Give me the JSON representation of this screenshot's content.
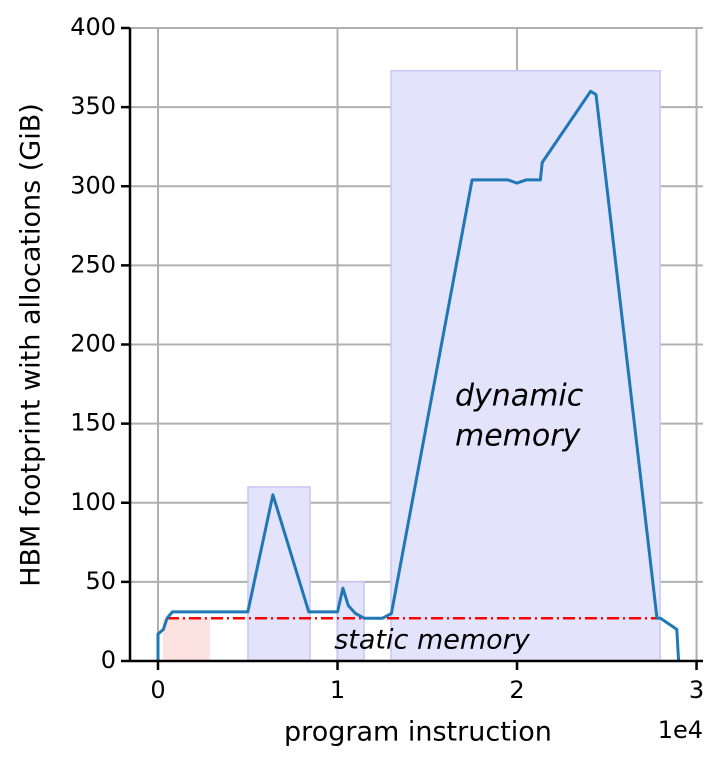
{
  "chart_data": {
    "type": "line",
    "xlabel": "program instruction",
    "ylabel": "HBM footprint with allocations (GiB)",
    "x_offset_label": "1e4",
    "xlim": [
      -1560,
      30360
    ],
    "ylim": [
      0,
      400
    ],
    "xticks": [
      {
        "value": 0,
        "label": "0"
      },
      {
        "value": 10000,
        "label": "1"
      },
      {
        "value": 20000,
        "label": "2"
      },
      {
        "value": 30000,
        "label": "3"
      }
    ],
    "yticks": [
      0,
      50,
      100,
      150,
      200,
      250,
      300,
      350,
      400
    ],
    "grid": true,
    "series": [
      {
        "color": "#1f77b4",
        "x": [
          0,
          0,
          300,
          500,
          800,
          5000,
          6400,
          8400,
          10000,
          10300,
          10600,
          11000,
          11500,
          12500,
          13000,
          17500,
          19500,
          20000,
          20500,
          21300,
          21400,
          24100,
          24400,
          25000,
          27800,
          28000,
          28900,
          29000
        ],
        "values": [
          0,
          17,
          20,
          27,
          31,
          31,
          105,
          31,
          31,
          46,
          35,
          30,
          27,
          27,
          30,
          304,
          304,
          302,
          304,
          304,
          315,
          360,
          358,
          300,
          27,
          27,
          20,
          0
        ]
      }
    ],
    "dynamic_regions": {
      "color": "#e3e3fc",
      "edge": "#c8c8f4",
      "regions": [
        {
          "x": [
            5010,
            8470
          ],
          "y": [
            0,
            110
          ]
        },
        {
          "x": [
            10000,
            11480
          ],
          "y": [
            0,
            50
          ]
        },
        {
          "x": [
            12980,
            27970
          ],
          "y": [
            0,
            373
          ]
        }
      ]
    },
    "static_region": {
      "color": "#fde2e2",
      "x": [
        280,
        2900
      ],
      "y": [
        0,
        27
      ]
    },
    "static_line": {
      "color": "#ff0000",
      "value": 27,
      "x": [
        500,
        28000
      ]
    },
    "annotations": [
      {
        "lines": [
          "dynamic",
          "memory"
        ]
      },
      {
        "lines": [
          "static memory"
        ]
      }
    ]
  }
}
